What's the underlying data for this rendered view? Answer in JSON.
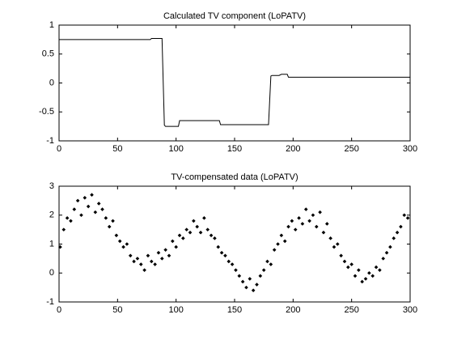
{
  "chart_data": [
    {
      "type": "line",
      "title": "Calculated TV component (LoPATV)",
      "color": "#000000",
      "x": [
        0,
        78,
        79,
        88,
        90,
        91,
        102,
        103,
        137,
        138,
        179,
        181,
        182,
        188,
        190,
        195,
        196,
        300
      ],
      "values": [
        0.75,
        0.75,
        0.77,
        0.77,
        -0.73,
        -0.75,
        -0.75,
        -0.65,
        -0.65,
        -0.72,
        -0.72,
        0.12,
        0.13,
        0.13,
        0.15,
        0.15,
        0.1,
        0.1
      ],
      "xlim": [
        0,
        300
      ],
      "xticks": [
        0,
        50,
        100,
        150,
        200,
        250,
        300
      ],
      "ylim": [
        -1,
        1
      ],
      "yticks": [
        -1,
        -0.5,
        0,
        0.5,
        1
      ]
    },
    {
      "type": "scatter",
      "title": "TV-compensated data (LoPATV)",
      "color": "#000000",
      "x": [
        1,
        4,
        7,
        10,
        13,
        16,
        19,
        22,
        25,
        28,
        31,
        34,
        37,
        40,
        43,
        46,
        49,
        52,
        55,
        58,
        61,
        64,
        67,
        70,
        73,
        76,
        79,
        82,
        85,
        88,
        91,
        94,
        97,
        100,
        103,
        106,
        109,
        112,
        115,
        118,
        121,
        124,
        127,
        130,
        133,
        136,
        139,
        142,
        145,
        148,
        151,
        154,
        157,
        160,
        163,
        166,
        169,
        172,
        175,
        178,
        181,
        184,
        187,
        190,
        193,
        196,
        199,
        202,
        205,
        208,
        211,
        214,
        217,
        220,
        223,
        226,
        229,
        232,
        235,
        238,
        241,
        244,
        247,
        250,
        253,
        256,
        259,
        262,
        265,
        268,
        271,
        274,
        277,
        280,
        283,
        286,
        289,
        292,
        295,
        298
      ],
      "values": [
        0.9,
        1.5,
        1.9,
        1.8,
        2.2,
        2.5,
        2.0,
        2.6,
        2.3,
        2.7,
        2.1,
        2.4,
        2.2,
        1.9,
        1.6,
        1.8,
        1.3,
        1.1,
        0.9,
        1.0,
        0.6,
        0.4,
        0.5,
        0.3,
        0.1,
        0.6,
        0.4,
        0.3,
        0.7,
        0.5,
        0.8,
        0.6,
        1.1,
        0.9,
        1.3,
        1.2,
        1.5,
        1.4,
        1.8,
        1.6,
        1.4,
        1.9,
        1.5,
        1.3,
        1.2,
        0.9,
        0.7,
        0.6,
        0.4,
        0.3,
        0.1,
        -0.1,
        -0.3,
        -0.5,
        -0.2,
        -0.6,
        -0.4,
        -0.1,
        0.1,
        0.4,
        0.3,
        0.8,
        1.0,
        1.3,
        1.1,
        1.6,
        1.8,
        1.5,
        1.9,
        1.7,
        2.2,
        1.8,
        2.0,
        1.6,
        2.1,
        1.4,
        1.7,
        1.2,
        0.9,
        1.0,
        0.6,
        0.4,
        0.2,
        0.3,
        -0.1,
        0.1,
        -0.3,
        -0.2,
        0.0,
        -0.1,
        0.2,
        0.1,
        0.5,
        0.7,
        0.9,
        1.2,
        1.4,
        1.6,
        2.0,
        1.9
      ],
      "xlim": [
        0,
        300
      ],
      "xticks": [
        0,
        50,
        100,
        150,
        200,
        250,
        300
      ],
      "ylim": [
        -1,
        3
      ],
      "yticks": [
        -1,
        0,
        1,
        2,
        3
      ]
    }
  ]
}
